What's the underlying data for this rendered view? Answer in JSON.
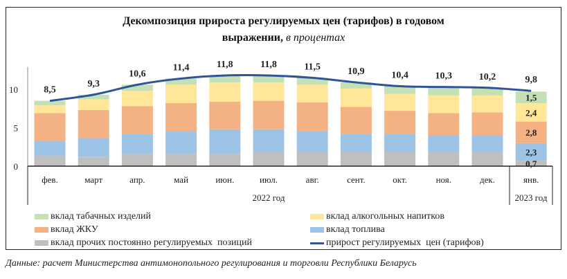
{
  "chart_data": {
    "type": "bar",
    "stacked": true,
    "title": "Декомпозиция прироста регулируемых цен (тарифов) в годовом выражении,",
    "title_unit": "в процентах",
    "categories": [
      "фев.",
      "март",
      "апр.",
      "май",
      "июн.",
      "июл.",
      "авг.",
      "сент.",
      "окт.",
      "ноя.",
      "дек.",
      "янв."
    ],
    "year_groups": [
      {
        "label": "2022 год",
        "count": 11
      },
      {
        "label": "2023 год",
        "count": 1
      }
    ],
    "yticks": [
      "0",
      "5",
      "10"
    ],
    "ylim": [
      0,
      13
    ],
    "series": [
      {
        "name": "вклад прочих постоянно регулируемых  позиций",
        "color": "#bfbfbf",
        "values": [
          1.4,
          1.2,
          1.6,
          1.6,
          1.6,
          1.9,
          1.8,
          1.8,
          1.8,
          1.8,
          1.8,
          0.7
        ]
      },
      {
        "name": "вклад топлива",
        "color": "#9dc3e6",
        "values": [
          1.9,
          2.4,
          2.6,
          2.9,
          3.2,
          2.9,
          2.8,
          2.4,
          2.4,
          2.25,
          2.25,
          2.3
        ]
      },
      {
        "name": "вклад ЖКУ",
        "color": "#f4b183",
        "values": [
          3.6,
          3.7,
          3.6,
          3.7,
          3.6,
          3.7,
          3.7,
          3.5,
          3.0,
          2.85,
          2.95,
          2.8
        ]
      },
      {
        "name": "вклад алкогольных напитков",
        "color": "#ffe699",
        "values": [
          1.0,
          1.4,
          2.0,
          2.4,
          2.5,
          2.4,
          2.3,
          2.4,
          2.2,
          2.3,
          2.2,
          2.4
        ]
      },
      {
        "name": "вклад табачных изделий",
        "color": "#c5e0b4",
        "values": [
          0.6,
          0.6,
          0.8,
          0.8,
          0.9,
          0.9,
          0.9,
          0.8,
          1.0,
          1.1,
          1.0,
          1.5
        ]
      }
    ],
    "line": {
      "name": "прирост регулируемых  цен (тарифов)",
      "color": "#2f5597",
      "values": [
        8.5,
        9.3,
        10.6,
        11.4,
        11.8,
        11.8,
        11.5,
        10.9,
        10.4,
        10.3,
        10.2,
        9.8
      ],
      "labels": [
        "8,5",
        "9,3",
        "10,6",
        "11,4",
        "11,8",
        "11,8",
        "11,5",
        "10,9",
        "10,4",
        "10,3",
        "10,2",
        "9,8"
      ]
    },
    "segment_labels_last": [
      "0,7",
      "2,3",
      "2,8",
      "2,4",
      "1,5"
    ],
    "legend_position": "bottom"
  },
  "legend": {
    "tobacco": "вклад табачных изделий",
    "alcohol": "вклад алкогольных напитков",
    "housing": "вклад ЖКУ",
    "fuel": "вклад топлива",
    "other": "вклад прочих постоянно регулируемых  позиций",
    "line": "прирост регулируемых  цен (тарифов)"
  },
  "footer": "Данные: расчет Министерства антимонопольного регулирования и торговли Республики Беларусь"
}
